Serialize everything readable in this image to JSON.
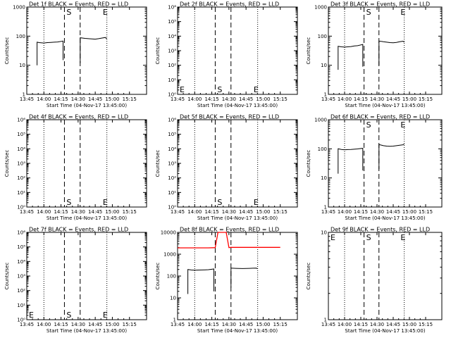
{
  "figure": {
    "x_label": "Start Time (04-Nov-17 13:45:00)",
    "x_ticks": [
      "13:45",
      "14:00",
      "14:15",
      "14:30",
      "14:45",
      "15:00",
      "15:15"
    ],
    "y_label": "Counts/sec"
  },
  "colors": {
    "events": "#000000",
    "lld": "#ff0000",
    "frame": "#000000"
  },
  "chart_data": [
    {
      "type": "line",
      "title": "Det 1f BLACK = Events, RED = LLD",
      "xlabel": "Start Time (04-Nov-17 13:45:00)",
      "ylabel": "Counts/sec",
      "y_scale": "log",
      "ylim": [
        1,
        1000
      ],
      "y_ticks": [
        {
          "v": 1,
          "l": "1"
        },
        {
          "v": 10,
          "l": "10"
        },
        {
          "v": 100,
          "l": "100"
        },
        {
          "v": 1000,
          "l": "1000"
        }
      ],
      "markers": [
        {
          "t": 14.3,
          "l": "S"
        },
        {
          "t": 14.83,
          "l": "E"
        }
      ],
      "marker_label_pos": "top",
      "dotted_x": [
        14.0,
        14.92
      ],
      "dashed_x": [
        14.3,
        14.53
      ],
      "series": [
        {
          "color": "#000000",
          "segments": [
            [
              [
                13.9,
                10
              ],
              [
                13.9,
                62
              ],
              [
                13.93,
                60
              ],
              [
                14.0,
                58
              ],
              [
                14.05,
                60
              ],
              [
                14.1,
                61
              ],
              [
                14.15,
                62
              ],
              [
                14.2,
                63
              ],
              [
                14.28,
                68
              ],
              [
                14.28,
                15
              ]
            ],
            [
              [
                14.53,
                12
              ],
              [
                14.53,
                88
              ],
              [
                14.6,
                84
              ],
              [
                14.65,
                82
              ],
              [
                14.7,
                80
              ],
              [
                14.75,
                79
              ],
              [
                14.8,
                82
              ],
              [
                14.85,
                86
              ],
              [
                14.9,
                90
              ],
              [
                14.92,
                78
              ]
            ]
          ]
        }
      ]
    },
    {
      "type": "line",
      "title": "Det 2f BLACK = Events, RED = LLD",
      "xlabel": "Start Time (04-Nov-17 13:45:00)",
      "ylabel": "Counts/sec",
      "y_scale": "log",
      "ylim": [
        1,
        1000000
      ],
      "y_ticks": [
        {
          "v": 1,
          "l": "10⁰"
        },
        {
          "v": 10,
          "l": "10¹"
        },
        {
          "v": 100,
          "l": "10²"
        },
        {
          "v": 1000,
          "l": "10³"
        },
        {
          "v": 10000,
          "l": "10⁴"
        },
        {
          "v": 100000,
          "l": "10⁵"
        },
        {
          "v": 1000000,
          "l": "10⁶"
        }
      ],
      "markers": [
        {
          "t": 13.75,
          "l": "E"
        },
        {
          "t": 14.3,
          "l": "S"
        },
        {
          "t": 14.83,
          "l": "E"
        }
      ],
      "marker_label_pos": "bottom",
      "dotted_x": [
        13.75,
        14.0,
        14.92
      ],
      "dashed_x": [
        14.3,
        14.53
      ],
      "series": []
    },
    {
      "type": "line",
      "title": "Det 3f BLACK = Events, RED = LLD",
      "xlabel": "Start Time (04-Nov-17 13:45:00)",
      "ylabel": "Counts/sec",
      "y_scale": "log",
      "ylim": [
        1,
        1000
      ],
      "y_ticks": [
        {
          "v": 1,
          "l": "1"
        },
        {
          "v": 10,
          "l": "10"
        },
        {
          "v": 100,
          "l": "100"
        },
        {
          "v": 1000,
          "l": "1000"
        }
      ],
      "markers": [
        {
          "t": 14.3,
          "l": "S"
        },
        {
          "t": 14.83,
          "l": "E"
        }
      ],
      "marker_label_pos": "top",
      "dotted_x": [
        14.0,
        14.92
      ],
      "dashed_x": [
        14.3,
        14.53
      ],
      "series": [
        {
          "color": "#000000",
          "segments": [
            [
              [
                13.9,
                7
              ],
              [
                13.9,
                45
              ],
              [
                13.95,
                43
              ],
              [
                14.0,
                42
              ],
              [
                14.05,
                43
              ],
              [
                14.1,
                44
              ],
              [
                14.15,
                46
              ],
              [
                14.2,
                47
              ],
              [
                14.28,
                52
              ],
              [
                14.28,
                9
              ]
            ],
            [
              [
                14.53,
                10
              ],
              [
                14.53,
                68
              ],
              [
                14.6,
                64
              ],
              [
                14.65,
                62
              ],
              [
                14.7,
                60
              ],
              [
                14.75,
                59
              ],
              [
                14.8,
                61
              ],
              [
                14.85,
                64
              ],
              [
                14.9,
                67
              ],
              [
                14.92,
                62
              ]
            ]
          ]
        }
      ]
    },
    {
      "type": "line",
      "title": "Det 4f BLACK = Events, RED = LLD",
      "xlabel": "Start Time (04-Nov-17 13:45:00)",
      "ylabel": "Counts/sec",
      "y_scale": "log",
      "ylim": [
        1,
        1000000
      ],
      "y_ticks": [
        {
          "v": 1,
          "l": "10⁰"
        },
        {
          "v": 10,
          "l": "10¹"
        },
        {
          "v": 100,
          "l": "10²"
        },
        {
          "v": 1000,
          "l": "10³"
        },
        {
          "v": 10000,
          "l": "10⁴"
        },
        {
          "v": 100000,
          "l": "10⁵"
        },
        {
          "v": 1000000,
          "l": "10⁶"
        }
      ],
      "markers": [
        {
          "t": 14.3,
          "l": "S"
        },
        {
          "t": 14.83,
          "l": "E"
        }
      ],
      "marker_label_pos": "bottom",
      "dotted_x": [
        14.0,
        14.92
      ],
      "dashed_x": [
        14.3,
        14.53
      ],
      "series": []
    },
    {
      "type": "line",
      "title": "Det 5f BLACK = Events, RED = LLD",
      "xlabel": "Start Time (04-Nov-17 13:45:00)",
      "ylabel": "Counts/sec",
      "y_scale": "log",
      "ylim": [
        1,
        1000000
      ],
      "y_ticks": [
        {
          "v": 1,
          "l": "10⁰"
        },
        {
          "v": 10,
          "l": "10¹"
        },
        {
          "v": 100,
          "l": "10²"
        },
        {
          "v": 1000,
          "l": "10³"
        },
        {
          "v": 10000,
          "l": "10⁴"
        },
        {
          "v": 100000,
          "l": "10⁵"
        },
        {
          "v": 1000000,
          "l": "10⁶"
        }
      ],
      "markers": [
        {
          "t": 14.3,
          "l": "S"
        },
        {
          "t": 14.83,
          "l": "E"
        }
      ],
      "marker_label_pos": "bottom",
      "dotted_x": [
        14.0,
        14.92
      ],
      "dashed_x": [
        14.3,
        14.53
      ],
      "series": []
    },
    {
      "type": "line",
      "title": "Det 6f BLACK = Events, RED = LLD",
      "xlabel": "Start Time (04-Nov-17 13:45:00)",
      "ylabel": "Counts/sec",
      "y_scale": "log",
      "ylim": [
        1,
        1000
      ],
      "y_ticks": [
        {
          "v": 1,
          "l": "1"
        },
        {
          "v": 10,
          "l": "10"
        },
        {
          "v": 100,
          "l": "100"
        },
        {
          "v": 1000,
          "l": "1000"
        }
      ],
      "markers": [
        {
          "t": 14.3,
          "l": "S"
        },
        {
          "t": 14.83,
          "l": "E"
        }
      ],
      "marker_label_pos": "top",
      "dotted_x": [
        14.0,
        14.92
      ],
      "dashed_x": [
        14.3,
        14.53
      ],
      "series": [
        {
          "color": "#000000",
          "segments": [
            [
              [
                13.9,
                14
              ],
              [
                13.9,
                100
              ],
              [
                13.95,
                95
              ],
              [
                14.0,
                92
              ],
              [
                14.05,
                94
              ],
              [
                14.1,
                95
              ],
              [
                14.15,
                97
              ],
              [
                14.2,
                99
              ],
              [
                14.28,
                104
              ],
              [
                14.28,
                18
              ]
            ],
            [
              [
                14.53,
                20
              ],
              [
                14.53,
                140
              ],
              [
                14.6,
                128
              ],
              [
                14.65,
                124
              ],
              [
                14.7,
                122
              ],
              [
                14.75,
                124
              ],
              [
                14.8,
                128
              ],
              [
                14.85,
                132
              ],
              [
                14.9,
                138
              ],
              [
                14.92,
                145
              ]
            ]
          ]
        }
      ]
    },
    {
      "type": "line",
      "title": "Det 7f BLACK = Events, RED = LLD",
      "xlabel": "Start Time (04-Nov-17 13:45:00)",
      "ylabel": "Counts/sec",
      "y_scale": "log",
      "ylim": [
        1,
        1000000
      ],
      "y_ticks": [
        {
          "v": 1,
          "l": "10⁰"
        },
        {
          "v": 10,
          "l": "10¹"
        },
        {
          "v": 100,
          "l": "10²"
        },
        {
          "v": 1000,
          "l": "10³"
        },
        {
          "v": 10000,
          "l": "10⁴"
        },
        {
          "v": 100000,
          "l": "10⁵"
        },
        {
          "v": 1000000,
          "l": "10⁶"
        }
      ],
      "markers": [
        {
          "t": 13.75,
          "l": "E"
        },
        {
          "t": 14.3,
          "l": "S"
        },
        {
          "t": 14.83,
          "l": "E"
        }
      ],
      "marker_label_pos": "bottom",
      "dotted_x": [
        13.75,
        14.0,
        14.92
      ],
      "dashed_x": [
        14.3,
        14.53
      ],
      "series": []
    },
    {
      "type": "line",
      "title": "Det 8f BLACK = Events, RED = LLD",
      "xlabel": "Start Time (04-Nov-17 13:45:00)",
      "ylabel": "Counts/sec",
      "y_scale": "log",
      "ylim": [
        1,
        10000
      ],
      "y_ticks": [
        {
          "v": 1,
          "l": "1"
        },
        {
          "v": 10,
          "l": "10"
        },
        {
          "v": 100,
          "l": "100"
        },
        {
          "v": 1000,
          "l": "1000"
        },
        {
          "v": 10000,
          "l": "10000"
        }
      ],
      "markers": [],
      "marker_label_pos": "top",
      "dotted_x": [
        14.0,
        14.92
      ],
      "dashed_x": [
        14.3,
        14.53
      ],
      "series": [
        {
          "color": "#000000",
          "segments": [
            [
              [
                13.9,
                15
              ],
              [
                13.9,
                200
              ],
              [
                13.95,
                190
              ],
              [
                14.0,
                185
              ],
              [
                14.05,
                188
              ],
              [
                14.1,
                190
              ],
              [
                14.15,
                192
              ],
              [
                14.2,
                195
              ],
              [
                14.28,
                210
              ],
              [
                14.28,
                20
              ]
            ],
            [
              [
                14.53,
                30
              ],
              [
                14.53,
                230
              ],
              [
                14.6,
                225
              ],
              [
                14.65,
                222
              ],
              [
                14.7,
                220
              ],
              [
                14.75,
                222
              ],
              [
                14.8,
                225
              ],
              [
                14.85,
                228
              ],
              [
                14.9,
                230
              ],
              [
                14.92,
                215
              ]
            ]
          ]
        },
        {
          "color": "#ff0000",
          "segments": [
            [
              [
                13.75,
                1950
              ],
              [
                14.2,
                1950
              ],
              [
                14.3,
                2000
              ],
              [
                14.34,
                12000
              ],
              [
                14.46,
                12000
              ],
              [
                14.5,
                2000
              ],
              [
                14.53,
                2050
              ],
              [
                15.25,
                2050
              ]
            ]
          ]
        }
      ]
    },
    {
      "type": "line",
      "title": "Det 9f BLACK = Events, RED = LLD",
      "xlabel": "Start Time (04-Nov-17 13:45:00)",
      "ylabel": "Counts/sec",
      "y_scale": "log",
      "ylim": [
        1,
        10
      ],
      "y_ticks": [
        {
          "v": 1,
          "l": "1"
        },
        {
          "v": 10,
          "l": "10"
        }
      ],
      "markers": [
        {
          "t": 13.75,
          "l": "E"
        },
        {
          "t": 14.3,
          "l": "S"
        },
        {
          "t": 14.83,
          "l": "E"
        }
      ],
      "marker_label_pos": "top",
      "dotted_x": [
        13.75,
        14.0,
        14.92
      ],
      "dashed_x": [
        14.3,
        14.53
      ],
      "series": []
    }
  ]
}
